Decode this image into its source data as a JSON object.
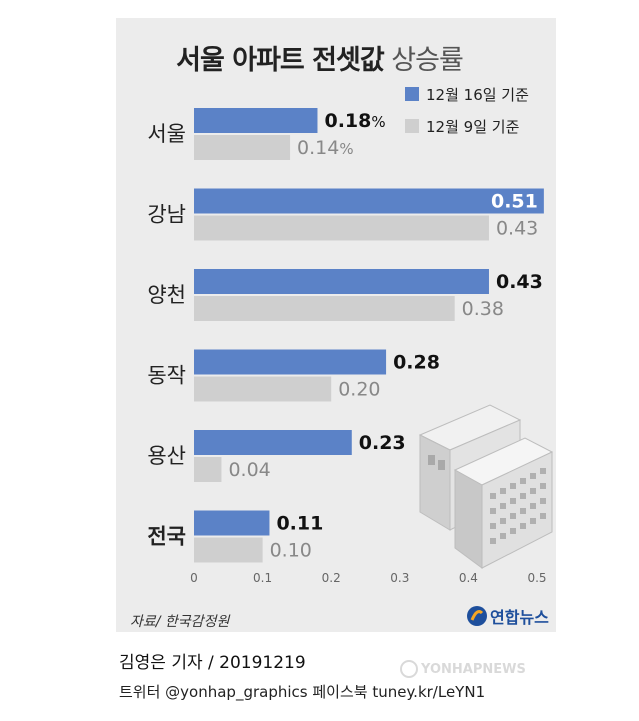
{
  "title": {
    "bold": "서울 아파트 전셋값",
    "light": "상승률"
  },
  "chart_data": {
    "type": "bar",
    "orientation": "horizontal",
    "title": "서울 아파트 전셋값 상승률",
    "categories": [
      "서울",
      "강남",
      "양천",
      "동작",
      "용산",
      "전국"
    ],
    "series": [
      {
        "name": "12월 16일 기준",
        "color": "#5b82c7",
        "values": [
          0.18,
          0.51,
          0.43,
          0.28,
          0.23,
          0.11
        ],
        "labels": [
          "0.18",
          "0.51",
          "0.43",
          "0.28",
          "0.23",
          "0.11"
        ]
      },
      {
        "name": "12월 9일 기준",
        "color": "#cfcfcf",
        "values": [
          0.14,
          0.43,
          0.38,
          0.2,
          0.04,
          0.1
        ],
        "labels": [
          "0.14",
          "0.43",
          "0.38",
          "0.20",
          "0.04",
          "0.10"
        ]
      }
    ],
    "first_label_suffix": "%",
    "xlim": [
      0,
      0.5
    ],
    "xticks": [
      "0",
      "0.1",
      "0.2",
      "0.3",
      "0.4",
      "0.5"
    ],
    "legend_position": "top-right",
    "grid": false
  },
  "source": "자료/ 한국감정원",
  "logo_text": "연합뉴스",
  "credit": "김영은 기자 / 20191219",
  "social": "트위터 @yonhap_graphics  페이스북 tuney.kr/LeYN1",
  "watermark": "YONHAPNEWS"
}
